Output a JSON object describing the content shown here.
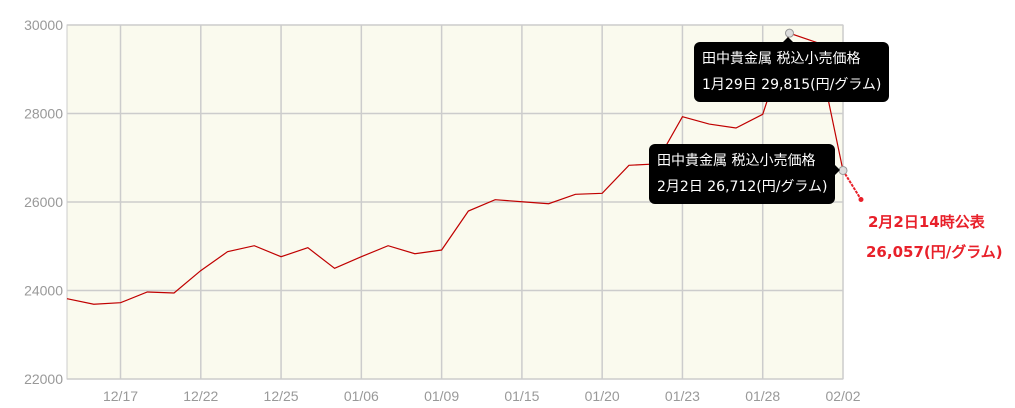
{
  "chart_data": {
    "type": "line",
    "x": [
      "12/15",
      "12/16",
      "12/17",
      "12/18",
      "12/19",
      "12/22",
      "12/23",
      "12/24",
      "12/25",
      "12/26",
      "01/05",
      "01/06",
      "01/07",
      "01/08",
      "01/09",
      "01/13",
      "01/14",
      "01/15",
      "01/16",
      "01/19",
      "01/20",
      "01/21",
      "01/22",
      "01/23",
      "01/26",
      "01/27",
      "01/28",
      "01/29",
      "01/30",
      "02/02"
    ],
    "values": [
      23815,
      23690,
      23724,
      23966,
      23943,
      24450,
      24877,
      25012,
      24763,
      24967,
      24501,
      24764,
      25012,
      24831,
      24915,
      25796,
      26052,
      26006,
      25961,
      26174,
      26196,
      26829,
      26860,
      27928,
      27762,
      27672,
      27982,
      29815,
      29609,
      26712
    ],
    "x_tick_labels": [
      "12/17",
      "12/22",
      "12/25",
      "01/06",
      "01/09",
      "01/15",
      "01/20",
      "01/23",
      "01/28",
      "02/02"
    ],
    "y_ticks": [
      22000,
      24000,
      26000,
      28000,
      30000
    ],
    "ylim": [
      22000,
      30000
    ],
    "grid": true,
    "line_color": "#c00000",
    "background": "#fafaee",
    "announcement_value": 26057,
    "tooltips": [
      {
        "title": "田中貴金属 税込小売価格",
        "text": "1月29日 29,815(円/グラム)"
      },
      {
        "title": "田中貴金属 税込小売価格",
        "text": "2月2日 26,712(円/グラム)"
      }
    ],
    "announcement": {
      "line1": "2月2日14時公表",
      "line2": "26,057(円/グラム)",
      "color": "#e8202a"
    }
  }
}
